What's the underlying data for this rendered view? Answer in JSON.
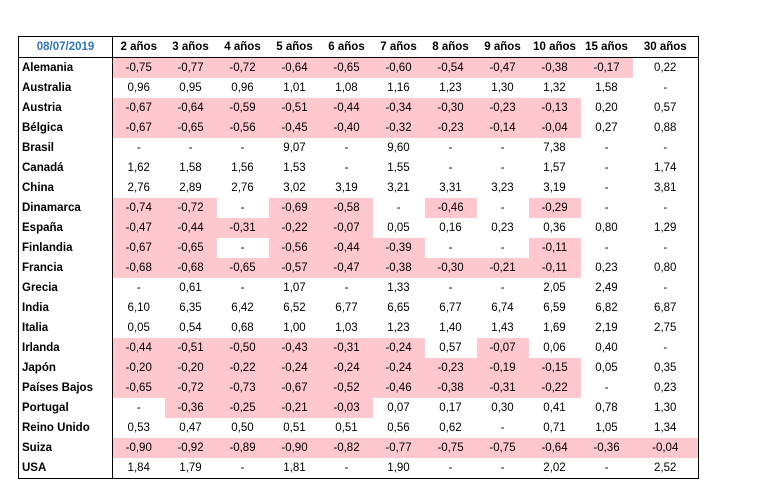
{
  "table": {
    "date": "08/07/2019",
    "columns": [
      "2 años",
      "3 años",
      "4 años",
      "5 años",
      "6 años",
      "7 años",
      "8 años",
      "9 años",
      "10 años",
      "15 años",
      "30 años"
    ],
    "highlight_color": "#ffc7ce",
    "rows": [
      {
        "country": "Alemania",
        "values": [
          "-0,75",
          "-0,77",
          "-0,72",
          "-0,64",
          "-0,65",
          "-0,60",
          "-0,54",
          "-0,47",
          "-0,38",
          "-0,17",
          "0,22"
        ]
      },
      {
        "country": "Australia",
        "values": [
          "0,96",
          "0,95",
          "0,96",
          "1,01",
          "1,08",
          "1,16",
          "1,23",
          "1,30",
          "1,32",
          "1,58",
          "-"
        ]
      },
      {
        "country": "Austria",
        "values": [
          "-0,67",
          "-0,64",
          "-0,59",
          "-0,51",
          "-0,44",
          "-0,34",
          "-0,30",
          "-0,23",
          "-0,13",
          "0,20",
          "0,57"
        ]
      },
      {
        "country": "Bélgica",
        "values": [
          "-0,67",
          "-0,65",
          "-0,56",
          "-0,45",
          "-0,40",
          "-0,32",
          "-0,23",
          "-0,14",
          "-0,04",
          "0,27",
          "0,88"
        ]
      },
      {
        "country": "Brasil",
        "values": [
          "-",
          "-",
          "-",
          "9,07",
          "-",
          "9,60",
          "-",
          "-",
          "7,38",
          "-",
          "-"
        ]
      },
      {
        "country": "Canadá",
        "values": [
          "1,62",
          "1,58",
          "1,56",
          "1,53",
          "-",
          "1,55",
          "-",
          "-",
          "1,57",
          "-",
          "1,74"
        ]
      },
      {
        "country": "China",
        "values": [
          "2,76",
          "2,89",
          "2,76",
          "3,02",
          "3,19",
          "3,21",
          "3,31",
          "3,23",
          "3,19",
          "-",
          "3,81"
        ]
      },
      {
        "country": "Dinamarca",
        "values": [
          "-0,74",
          "-0,72",
          "-",
          "-0,69",
          "-0,58",
          "-",
          "-0,46",
          "-",
          "-0,29",
          "-",
          "-"
        ]
      },
      {
        "country": "España",
        "values": [
          "-0,47",
          "-0,44",
          "-0,31",
          "-0,22",
          "-0,07",
          "0,05",
          "0,16",
          "0,23",
          "0,36",
          "0,80",
          "1,29"
        ]
      },
      {
        "country": "Finlandia",
        "values": [
          "-0,67",
          "-0,65",
          "-",
          "-0,56",
          "-0,44",
          "-0,39",
          "-",
          "-",
          "-0,11",
          "-",
          "-"
        ]
      },
      {
        "country": "Francia",
        "values": [
          "-0,68",
          "-0,68",
          "-0,65",
          "-0,57",
          "-0,47",
          "-0,38",
          "-0,30",
          "-0,21",
          "-0,11",
          "0,23",
          "0,80"
        ]
      },
      {
        "country": "Grecia",
        "values": [
          "-",
          "0,61",
          "-",
          "1,07",
          "-",
          "1,33",
          "-",
          "-",
          "2,05",
          "2,49",
          "-"
        ]
      },
      {
        "country": "India",
        "values": [
          "6,10",
          "6,35",
          "6,42",
          "6,52",
          "6,77",
          "6,65",
          "6,77",
          "6,74",
          "6,59",
          "6,82",
          "6,87"
        ]
      },
      {
        "country": "Italia",
        "values": [
          "0,05",
          "0,54",
          "0,68",
          "1,00",
          "1,03",
          "1,23",
          "1,40",
          "1,43",
          "1,69",
          "2,19",
          "2,75"
        ]
      },
      {
        "country": "Irlanda",
        "values": [
          "-0,44",
          "-0,51",
          "-0,50",
          "-0,43",
          "-0,31",
          "-0,24",
          "0,57",
          "-0,07",
          "0,06",
          "0,40",
          "-"
        ]
      },
      {
        "country": "Japón",
        "values": [
          "-0,20",
          "-0,20",
          "-0,22",
          "-0,24",
          "-0,24",
          "-0,24",
          "-0,23",
          "-0,19",
          "-0,15",
          "0,05",
          "0,35"
        ]
      },
      {
        "country": "Países Bajos",
        "values": [
          "-0,65",
          "-0,72",
          "-0,73",
          "-0,67",
          "-0,52",
          "-0,46",
          "-0,38",
          "-0,31",
          "-0,22",
          "-",
          "0,23"
        ]
      },
      {
        "country": "Portugal",
        "values": [
          "-",
          "-0,36",
          "-0,25",
          "-0,21",
          "-0,03",
          "0,07",
          "0,17",
          "0,30",
          "0,41",
          "0,78",
          "1,30"
        ]
      },
      {
        "country": "Reino Unido",
        "values": [
          "0,53",
          "0,47",
          "0,50",
          "0,51",
          "0,51",
          "0,56",
          "0,62",
          "-",
          "0,71",
          "1,05",
          "1,34"
        ]
      },
      {
        "country": "Suiza",
        "values": [
          "-0,90",
          "-0,92",
          "-0,89",
          "-0,90",
          "-0,82",
          "-0,77",
          "-0,75",
          "-0,75",
          "-0,64",
          "-0,36",
          "-0,04"
        ]
      },
      {
        "country": "USA",
        "values": [
          "1,84",
          "1,79",
          "-",
          "1,81",
          "-",
          "1,90",
          "-",
          "-",
          "2,02",
          "-",
          "2,52"
        ]
      }
    ]
  }
}
